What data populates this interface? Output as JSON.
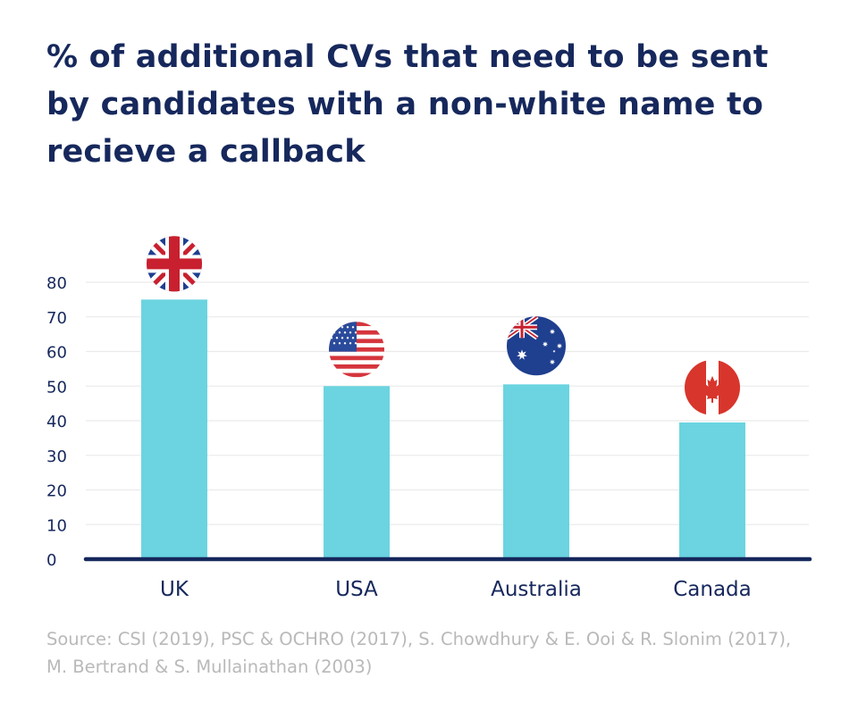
{
  "chart_data": {
    "type": "bar",
    "title": "% of additional CVs that need to be sent by candidates with a non-white name to recieve a callback",
    "categories": [
      "UK",
      "USA",
      "Australia",
      "Canada"
    ],
    "values": [
      75,
      50,
      50.5,
      39.5
    ],
    "ylim": [
      0,
      80
    ],
    "yticks": [
      0,
      10,
      20,
      30,
      40,
      50,
      60,
      70,
      80
    ],
    "xlabel": "",
    "ylabel": "",
    "grid": true,
    "bar_color": "#6bd4e0",
    "axis_color": "#16285c",
    "flag_icons": [
      "uk-flag-icon",
      "usa-flag-icon",
      "australia-flag-icon",
      "canada-flag-icon"
    ]
  },
  "source": "Source: CSI (2019), PSC & OCHRO (2017), S. Chowdhury & E. Ooi & R. Slonim (2017), M. Bertrand & S. Mullainathan (2003)"
}
